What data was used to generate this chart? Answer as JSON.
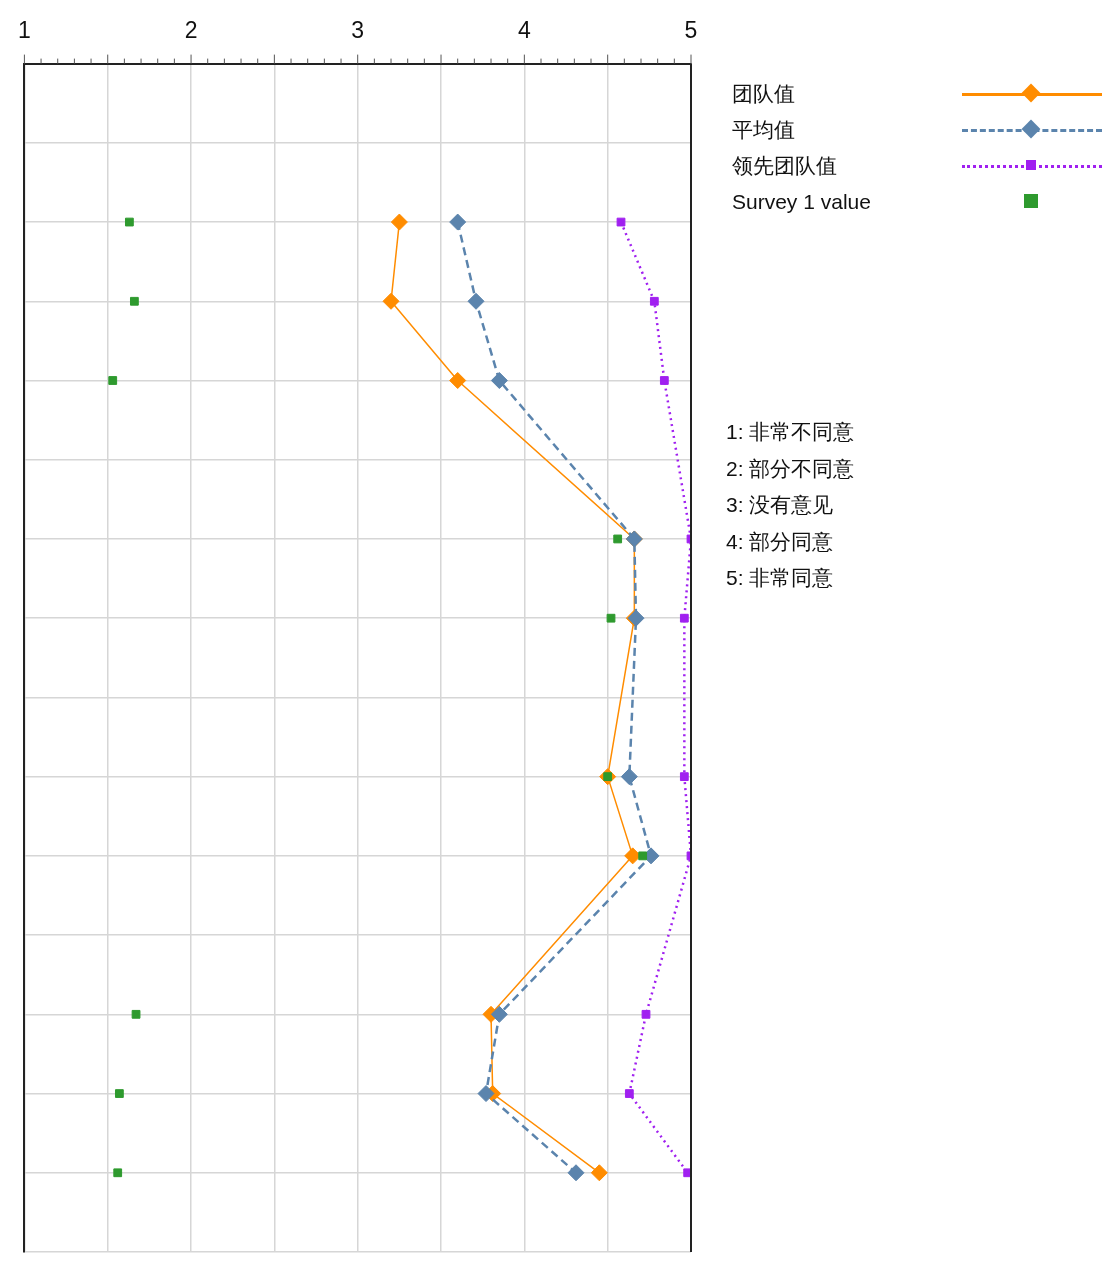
{
  "chart_data": {
    "type": "line",
    "orientation": "horizontal",
    "categories": [
      null,
      null,
      null,
      null,
      null,
      null,
      null,
      null,
      null,
      null,
      null,
      null,
      null,
      null,
      null,
      null
    ],
    "series": [
      {
        "name": "团队值",
        "color": "#ff8c00",
        "marker": "diamond",
        "line_style": "solid",
        "values": [
          null,
          null,
          3.25,
          3.2,
          3.6,
          null,
          4.66,
          4.66,
          null,
          4.5,
          4.65,
          null,
          3.8,
          3.81,
          4.45,
          null
        ]
      },
      {
        "name": "平均值",
        "color": "#5b84ad",
        "marker": "diamond",
        "line_style": "dashed",
        "values": [
          null,
          null,
          3.6,
          3.71,
          3.85,
          null,
          4.66,
          4.67,
          null,
          4.63,
          4.76,
          null,
          3.85,
          3.77,
          4.31,
          null
        ]
      },
      {
        "name": "领先团队值",
        "color": "#a020f0",
        "marker": "square",
        "line_style": "dotted",
        "values": [
          null,
          null,
          4.58,
          4.78,
          4.84,
          null,
          5.0,
          4.96,
          null,
          4.96,
          5.0,
          null,
          4.73,
          4.63,
          4.98,
          null
        ]
      },
      {
        "name": "Survey 1 value",
        "type": "scatter",
        "color": "#2e9a2e",
        "marker": "square",
        "values": [
          null,
          null,
          1.63,
          1.66,
          1.53,
          null,
          4.56,
          4.52,
          null,
          4.5,
          4.71,
          null,
          1.67,
          1.57,
          1.56,
          null
        ]
      }
    ],
    "xlim": [
      1,
      5
    ],
    "xticks": [
      1,
      {
        "value": 1.5,
        "label": null
      },
      2,
      {
        "value": 2.5,
        "label": null
      },
      3,
      {
        "value": 3.5,
        "label": null
      },
      4,
      {
        "value": 4.5,
        "label": null
      },
      5
    ],
    "grid": true,
    "legend": "top right",
    "tick_labels": "x",
    "annotations": [
      "1: 非常不同意",
      "2: 部分不同意",
      "3: 没有意见",
      "4: 部分同意",
      "5: 非常同意"
    ]
  }
}
